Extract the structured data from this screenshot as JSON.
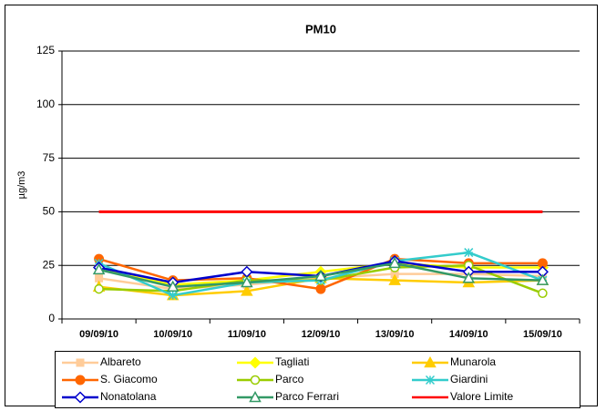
{
  "chart_data": {
    "type": "line",
    "title": "PM10",
    "y_label": "µg/m3",
    "categories": [
      "09/09/10",
      "10/09/10",
      "11/09/10",
      "12/09/10",
      "13/09/10",
      "14/09/10",
      "15/09/10"
    ],
    "ylim": [
      0,
      125
    ],
    "yticks": [
      0,
      25,
      50,
      75,
      100,
      125
    ],
    "grid": true,
    "series": [
      {
        "name": "Albareto",
        "color": "#ffcc99",
        "marker": "square",
        "values": [
          19,
          14,
          16,
          19,
          21,
          21,
          20
        ]
      },
      {
        "name": "Tagliati",
        "color": "#ffff00",
        "marker": "diamond",
        "values": [
          24,
          16,
          18,
          22,
          26,
          24,
          24
        ]
      },
      {
        "name": "Munarola",
        "color": "#ffcc00",
        "marker": "triangle",
        "values": [
          15,
          11,
          13,
          19,
          18,
          17,
          18
        ]
      },
      {
        "name": "S. Giacomo",
        "color": "#ff6600",
        "marker": "circle",
        "values": [
          28,
          18,
          19,
          14,
          28,
          26,
          26
        ]
      },
      {
        "name": "Parco",
        "color": "#99cc00",
        "marker": "open-circle",
        "values": [
          14,
          13,
          18,
          18,
          24,
          25,
          12
        ]
      },
      {
        "name": "Giardini",
        "color": "#33cccc",
        "marker": "star",
        "values": [
          26,
          11,
          17,
          18,
          27,
          31,
          18
        ]
      },
      {
        "name": "Nonatolana",
        "color": "#0000cc",
        "marker": "open-diamond",
        "values": [
          24,
          17,
          22,
          20,
          27,
          22,
          22
        ]
      },
      {
        "name": "Parco Ferrari",
        "color": "#339966",
        "marker": "open-triangle",
        "values": [
          23,
          15,
          17,
          20,
          26,
          19,
          18
        ]
      },
      {
        "name": "Valore Limite",
        "color": "#ff0000",
        "marker": "none",
        "values": [
          50,
          50,
          50,
          50,
          50,
          50,
          50
        ]
      }
    ]
  }
}
